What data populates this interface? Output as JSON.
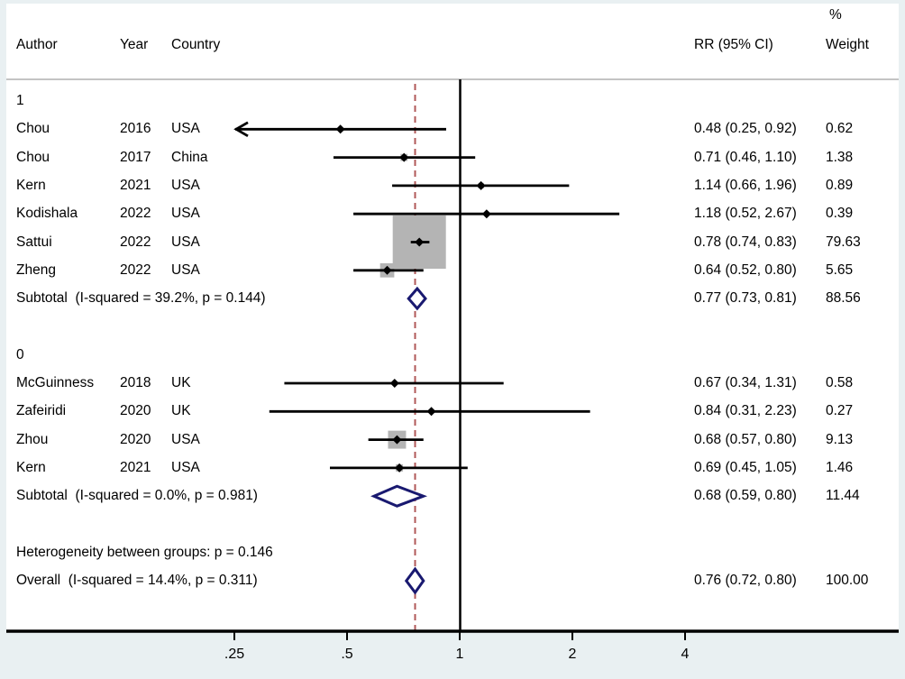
{
  "header": {
    "col_author": "Author",
    "col_year": "Year",
    "col_country": "Country",
    "col_rr": "RR (95% CI)",
    "col_pct": "%",
    "col_weight": "Weight"
  },
  "colors": {
    "diamond": "#191970",
    "box": "#b4b4b4",
    "dashed": "#b05858",
    "line": "#000000",
    "background": "#e9f0f2",
    "divider": "#c4c4c4"
  },
  "chart_data": {
    "type": "forest",
    "x_scale": "log",
    "x_ticks": [
      0.25,
      0.5,
      1,
      2,
      4
    ],
    "x_tick_labels": [
      ".25",
      ".5",
      "1",
      "2",
      "4"
    ],
    "null_line_at": 1,
    "dashed_reference_at": 0.76,
    "groups": [
      {
        "label": "1",
        "studies": [
          {
            "author": "Chou",
            "year": "2016",
            "country": "USA",
            "rr": 0.48,
            "lo": 0.25,
            "hi": 0.92,
            "weight": 0.62,
            "rr_text": "0.48 (0.25, 0.92)",
            "weight_text": "0.62",
            "arrow_left": true
          },
          {
            "author": "Chou",
            "year": "2017",
            "country": "China",
            "rr": 0.71,
            "lo": 0.46,
            "hi": 1.1,
            "weight": 1.38,
            "rr_text": "0.71 (0.46, 1.10)",
            "weight_text": "1.38"
          },
          {
            "author": "Kern",
            "year": "2021",
            "country": "USA",
            "rr": 1.14,
            "lo": 0.66,
            "hi": 1.96,
            "weight": 0.89,
            "rr_text": "1.14 (0.66, 1.96)",
            "weight_text": "0.89"
          },
          {
            "author": "Kodishala",
            "year": "2022",
            "country": "USA",
            "rr": 1.18,
            "lo": 0.52,
            "hi": 2.67,
            "weight": 0.39,
            "rr_text": "1.18 (0.52, 2.67)",
            "weight_text": "0.39"
          },
          {
            "author": "Sattui",
            "year": "2022",
            "country": "USA",
            "rr": 0.78,
            "lo": 0.74,
            "hi": 0.83,
            "weight": 79.63,
            "rr_text": "0.78 (0.74, 0.83)",
            "weight_text": "79.63"
          },
          {
            "author": "Zheng",
            "year": "2022",
            "country": "USA",
            "rr": 0.64,
            "lo": 0.52,
            "hi": 0.8,
            "weight": 5.65,
            "rr_text": "0.64 (0.52, 0.80)",
            "weight_text": "5.65"
          }
        ],
        "subtotal": {
          "label": "Subtotal  (I-squared = 39.2%, p = 0.144)",
          "rr": 0.77,
          "lo": 0.73,
          "hi": 0.81,
          "rr_text": "0.77 (0.73, 0.81)",
          "weight_text": "88.56"
        }
      },
      {
        "label": "0",
        "studies": [
          {
            "author": "McGuinness",
            "year": "2018",
            "country": "UK",
            "rr": 0.67,
            "lo": 0.34,
            "hi": 1.31,
            "weight": 0.58,
            "rr_text": "0.67 (0.34, 1.31)",
            "weight_text": "0.58"
          },
          {
            "author": "Zafeiridi",
            "year": "2020",
            "country": "UK",
            "rr": 0.84,
            "lo": 0.31,
            "hi": 2.23,
            "weight": 0.27,
            "rr_text": "0.84 (0.31, 2.23)",
            "weight_text": "0.27"
          },
          {
            "author": "Zhou",
            "year": "2020",
            "country": "USA",
            "rr": 0.68,
            "lo": 0.57,
            "hi": 0.8,
            "weight": 9.13,
            "rr_text": "0.68 (0.57, 0.80)",
            "weight_text": "9.13"
          },
          {
            "author": "Kern",
            "year": "2021",
            "country": "USA",
            "rr": 0.69,
            "lo": 0.45,
            "hi": 1.05,
            "weight": 1.46,
            "rr_text": "0.69 (0.45, 1.05)",
            "weight_text": "1.46"
          }
        ],
        "subtotal": {
          "label": "Subtotal  (I-squared = 0.0%, p = 0.981)",
          "rr": 0.68,
          "lo": 0.59,
          "hi": 0.8,
          "rr_text": "0.68 (0.59, 0.80)",
          "weight_text": "11.44"
        }
      }
    ],
    "heterogeneity_note": "Heterogeneity between groups: p = 0.146",
    "overall": {
      "label": "Overall  (I-squared = 14.4%, p = 0.311)",
      "rr": 0.76,
      "lo": 0.72,
      "hi": 0.8,
      "rr_text": "0.76 (0.72, 0.80)",
      "weight_text": "100.00"
    }
  }
}
